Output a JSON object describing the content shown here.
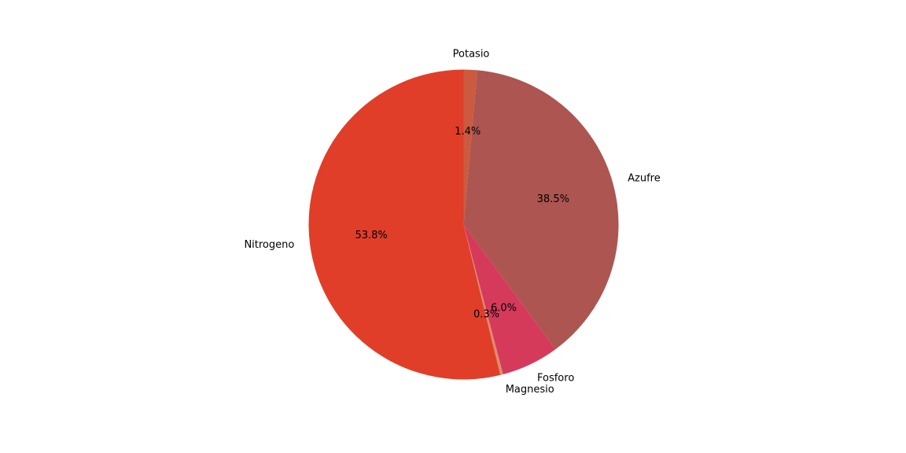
{
  "chart_data": {
    "type": "pie",
    "slices": [
      {
        "label": "Potasio",
        "value": 1.4,
        "pct_label": "1.4%",
        "color": "#cc5a3e"
      },
      {
        "label": "Azufre",
        "value": 38.5,
        "pct_label": "38.5%",
        "color": "#ad5550"
      },
      {
        "label": "Fosforo",
        "value": 6.0,
        "pct_label": "6.0%",
        "color": "#d63a5b"
      },
      {
        "label": "Magnesio",
        "value": 0.3,
        "pct_label": "0.3%",
        "color": "#e08a6e"
      },
      {
        "label": "Nitrogeno",
        "value": 53.8,
        "pct_label": "53.8%",
        "color": "#e03e28"
      }
    ],
    "start_angle_deg": 90,
    "direction": "clockwise"
  }
}
